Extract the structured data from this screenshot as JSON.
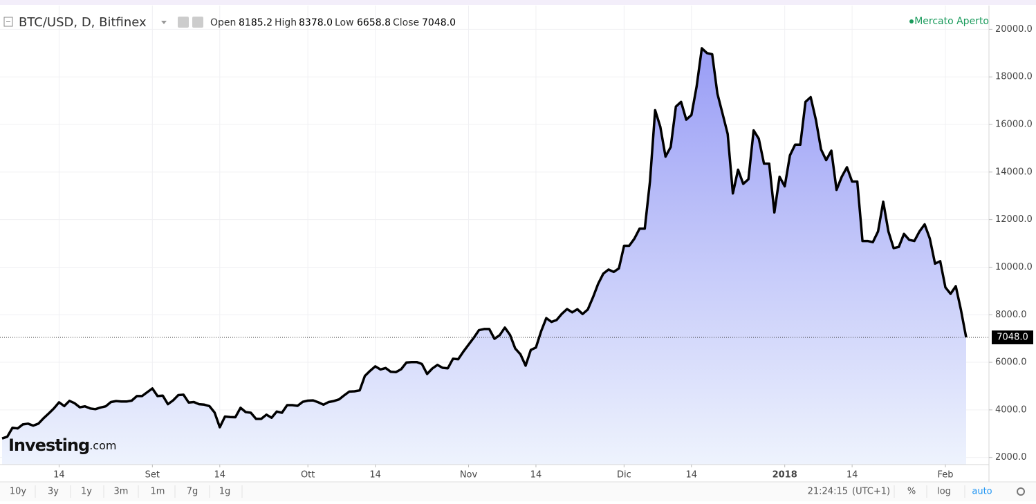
{
  "header": {
    "symbol": "BTC/USD, D, Bitfinex",
    "ohlc": [
      {
        "label": "Open",
        "value": "8185.2"
      },
      {
        "label": "High",
        "value": "8378.0"
      },
      {
        "label": "Low",
        "value": "6658.8"
      },
      {
        "label": "Close",
        "value": "7048.0"
      }
    ],
    "status": "Mercato Aperto"
  },
  "logo": {
    "name": "Investing",
    "suffix": ".com"
  },
  "chart_data": {
    "type": "area",
    "color": "#000000",
    "fill_top": "#9ca0f6",
    "fill_bottom": "#eef3fd",
    "grid": true,
    "categories": [
      null,
      null,
      null,
      null,
      null,
      null,
      null,
      null,
      null,
      null,
      null,
      "14",
      null,
      null,
      null,
      null,
      null,
      null,
      null,
      null,
      null,
      null,
      null,
      null,
      null,
      null,
      null,
      null,
      null,
      "Set",
      null,
      null,
      null,
      null,
      null,
      null,
      null,
      null,
      null,
      null,
      null,
      null,
      "14",
      null,
      null,
      null,
      null,
      null,
      null,
      null,
      null,
      null,
      null,
      null,
      null,
      null,
      null,
      null,
      null,
      "Ott",
      null,
      null,
      null,
      null,
      null,
      null,
      null,
      null,
      null,
      null,
      null,
      null,
      "14",
      null,
      null,
      null,
      null,
      null,
      null,
      null,
      null,
      null,
      null,
      null,
      null,
      null,
      null,
      null,
      null,
      null,
      "Nov",
      null,
      null,
      null,
      null,
      null,
      null,
      null,
      null,
      null,
      null,
      null,
      null,
      "14",
      null,
      null,
      null,
      null,
      null,
      null,
      null,
      null,
      null,
      null,
      null,
      null,
      null,
      null,
      null,
      null,
      "Dic",
      null,
      null,
      null,
      null,
      null,
      null,
      null,
      null,
      null,
      null,
      null,
      null,
      "14",
      null,
      null,
      null,
      null,
      null,
      null,
      null,
      null,
      null,
      null,
      null,
      null,
      null,
      null,
      null,
      null,
      null,
      "2018",
      null,
      null,
      null,
      null,
      null,
      null,
      null,
      null,
      null,
      null,
      null,
      null,
      "14",
      null,
      null,
      null,
      null,
      null,
      null,
      null,
      null,
      null,
      null,
      null,
      null,
      null,
      null,
      null,
      null,
      null,
      "Feb",
      null,
      null,
      null,
      null
    ],
    "bold_categories": [
      "2018"
    ],
    "values": [
      2800,
      2870,
      3250,
      3220,
      3390,
      3420,
      3340,
      3420,
      3650,
      3850,
      4060,
      4320,
      4160,
      4380,
      4280,
      4110,
      4150,
      4060,
      4030,
      4100,
      4150,
      4330,
      4370,
      4350,
      4350,
      4390,
      4580,
      4580,
      4740,
      4900,
      4580,
      4600,
      4240,
      4400,
      4620,
      4640,
      4310,
      4330,
      4240,
      4220,
      4160,
      3890,
      3270,
      3720,
      3700,
      3690,
      4090,
      3910,
      3880,
      3620,
      3620,
      3800,
      3670,
      3930,
      3880,
      4200,
      4200,
      4170,
      4340,
      4390,
      4400,
      4320,
      4220,
      4330,
      4370,
      4440,
      4610,
      4770,
      4780,
      4820,
      5430,
      5640,
      5830,
      5700,
      5760,
      5600,
      5590,
      5710,
      5990,
      6010,
      6010,
      5930,
      5510,
      5740,
      5890,
      5770,
      5750,
      6150,
      6130,
      6450,
      6740,
      7030,
      7350,
      7400,
      7400,
      6990,
      7140,
      7460,
      7150,
      6580,
      6340,
      5860,
      6520,
      6620,
      7300,
      7860,
      7700,
      7780,
      8040,
      8240,
      8100,
      8230,
      8030,
      8220,
      8730,
      9300,
      9730,
      9900,
      9800,
      9950,
      10900,
      10900,
      11200,
      11620,
      11620,
      13600,
      16600,
      15900,
      14650,
      15050,
      16750,
      16950,
      16200,
      16400,
      17600,
      19200,
      19000,
      18950,
      17300,
      16450,
      15600,
      13100,
      14100,
      13500,
      13700,
      15750,
      15400,
      14350,
      14350,
      12300,
      13800,
      13400,
      14700,
      15150,
      15150,
      16950,
      17150,
      16200,
      14950,
      14500,
      14900,
      13250,
      13800,
      14200,
      13600,
      13600,
      11100,
      11100,
      11050,
      11500,
      12750,
      11500,
      10800,
      10850,
      11400,
      11150,
      11100,
      11500,
      11800,
      11200,
      10150,
      10250,
      9150,
      8880,
      9200,
      8200,
      7048
    ],
    "ylim": [
      1700,
      21000
    ],
    "yticks": [
      {
        "value": 2000,
        "label": "2000.0"
      },
      {
        "value": 4000,
        "label": "4000.0"
      },
      {
        "value": 6000,
        "label": "6000.0"
      },
      {
        "value": 8000,
        "label": "8000.0"
      },
      {
        "value": 10000,
        "label": "10000.0"
      },
      {
        "value": 12000,
        "label": "12000.0"
      },
      {
        "value": 14000,
        "label": "14000.0"
      },
      {
        "value": 16000,
        "label": "16000.0"
      },
      {
        "value": 18000,
        "label": "18000.0"
      },
      {
        "value": 20000,
        "label": "20000.0"
      }
    ],
    "last": {
      "value": 7048,
      "label": "7048.0"
    }
  },
  "toolbar": {
    "ranges": [
      "10y",
      "3y",
      "1y",
      "3m",
      "1m",
      "7g",
      "1g"
    ],
    "time": "21:24:15",
    "timezone": "(UTC+1)",
    "options": [
      "%",
      "log",
      "auto"
    ]
  }
}
